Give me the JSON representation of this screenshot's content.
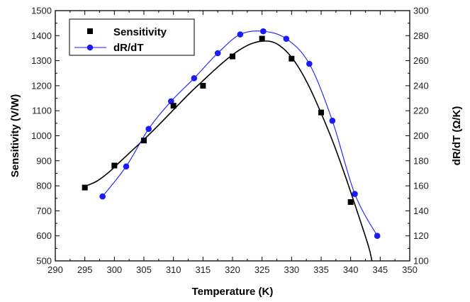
{
  "chart_data": {
    "type": "scatter",
    "xlabel": "Temperature (K)",
    "ylabel": "Sensitivity (V/W)",
    "y2label": "dR/dT (Ω/K)",
    "xlim": [
      290,
      350
    ],
    "ylim": [
      500,
      1500
    ],
    "y2lim": [
      100,
      300
    ],
    "x_ticks": [
      290,
      295,
      300,
      305,
      310,
      315,
      320,
      325,
      330,
      335,
      340,
      345,
      350
    ],
    "y_ticks": [
      500,
      600,
      700,
      800,
      900,
      1000,
      1100,
      1200,
      1300,
      1400,
      1500
    ],
    "y2_ticks": [
      100,
      120,
      140,
      160,
      180,
      200,
      220,
      240,
      260,
      280,
      300
    ],
    "grid": false,
    "legend_position": "top-left",
    "series": [
      {
        "name": "Sensitivity",
        "axis": "left",
        "marker": "square",
        "color": "#000000",
        "line_color": "#000000",
        "x": [
          295,
          300,
          305,
          310,
          315,
          320,
          325,
          330,
          335,
          340
        ],
        "values": [
          793,
          881,
          981,
          1120,
          1200,
          1317,
          1388,
          1308,
          1093,
          735
        ],
        "fit_curve": {
          "x": [
            295,
            297,
            299,
            301,
            303,
            305,
            307,
            309,
            311,
            313,
            315,
            317,
            319,
            321,
            323,
            325,
            327,
            329,
            331,
            333,
            335,
            337,
            339,
            341,
            343,
            343.6
          ],
          "values": [
            798,
            818,
            853,
            897,
            941,
            985,
            1031,
            1079,
            1128,
            1176,
            1220,
            1264,
            1305,
            1340,
            1366,
            1378,
            1373,
            1340,
            1280,
            1195,
            1090,
            975,
            845,
            705,
            560,
            500
          ]
        }
      },
      {
        "name": "dR/dT",
        "axis": "right",
        "marker": "circle",
        "color": "#1a1aff",
        "line_color": "#1a1aff",
        "x": [
          298,
          302,
          305.8,
          309.6,
          313.5,
          317.5,
          321.3,
          325.2,
          329.1,
          333,
          336.9,
          340.7,
          344.5
        ],
        "values": [
          151.5,
          175.5,
          205.5,
          227.5,
          246,
          266,
          281,
          283.5,
          277.5,
          257.5,
          212,
          153.5,
          120
        ]
      }
    ]
  }
}
